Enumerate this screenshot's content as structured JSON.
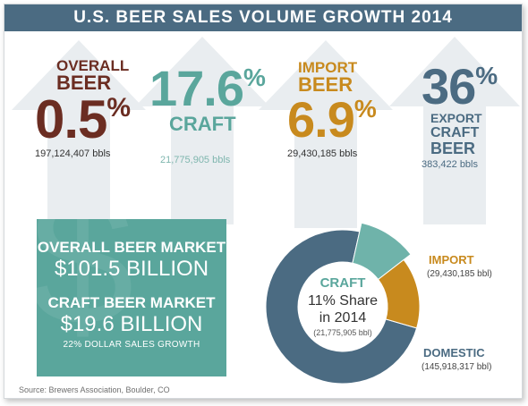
{
  "title": "U.S. BEER SALES VOLUME GROWTH 2014",
  "stats": {
    "overall": {
      "label_line1": "OVERALL",
      "label_line2": "BEER",
      "value": "0.5",
      "unit": "%",
      "bbls": "197,124,407 bbls"
    },
    "craft": {
      "value": "17.6",
      "unit": "%",
      "label": "CRAFT",
      "bbls": "21,775,905 bbls"
    },
    "import": {
      "label_line1": "IMPORT",
      "label_line2": "BEER",
      "value": "6.9",
      "unit": "%",
      "bbls": "29,430,185 bbls"
    },
    "export": {
      "value": "36",
      "unit": "%",
      "label_line1": "EXPORT",
      "label_line2": "CRAFT",
      "label_line3": "BEER",
      "bbls": "383,422 bbls"
    }
  },
  "market": {
    "overall_heading": "OVERALL BEER MARKET",
    "overall_value": "$101.5 BILLION",
    "craft_heading": "CRAFT BEER MARKET",
    "craft_value": "$19.6 BILLION",
    "craft_note": "22% DOLLAR SALES GROWTH"
  },
  "chart_data": {
    "type": "pie",
    "categories": [
      "DOMESTIC",
      "CRAFT",
      "IMPORT"
    ],
    "values": [
      145918317,
      21775905,
      29430185
    ],
    "labels": {
      "craft_title": "CRAFT",
      "craft_share_line1": "11% Share",
      "craft_share_line2": "in 2014",
      "craft_volume": "(21,775,905 bbl)",
      "import_name": "IMPORT",
      "import_volume": "(29,430,185 bbl)",
      "domestic_name": "DOMESTIC",
      "domestic_volume": "(145,918,317 bbl)"
    }
  },
  "colors": {
    "title_bar": "#4b6b82",
    "overall": "#6b2d22",
    "craft": "#5aa69c",
    "import": "#c88a1e",
    "export": "#4b6b82",
    "arrow": "#e9edf0",
    "donut_domestic": "#4b6b82",
    "donut_craft": "#6fb3aa",
    "donut_import": "#c88a1e"
  },
  "source": "Source: Brewers Association, Boulder, CO"
}
